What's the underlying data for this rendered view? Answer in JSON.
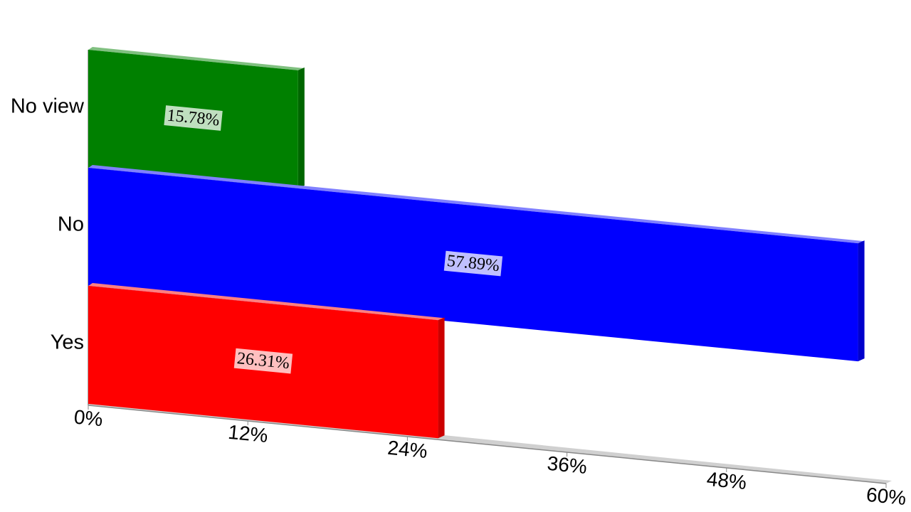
{
  "chart_data": {
    "type": "bar",
    "orientation": "horizontal",
    "categories": [
      "No view",
      "No",
      "Yes"
    ],
    "values": [
      15.78,
      57.89,
      26.31
    ],
    "value_labels": [
      "15.78%",
      "57.89%",
      "26.31%"
    ],
    "colors": [
      "#008000",
      "#0000ff",
      "#ff0000"
    ],
    "xlim": [
      0,
      60
    ],
    "xticks": [
      {
        "value": 0,
        "label": "0%"
      },
      {
        "value": 12,
        "label": "12%"
      },
      {
        "value": 24,
        "label": "24%"
      },
      {
        "value": 36,
        "label": "36%"
      },
      {
        "value": 48,
        "label": "48%"
      },
      {
        "value": 60,
        "label": "60%"
      }
    ]
  }
}
